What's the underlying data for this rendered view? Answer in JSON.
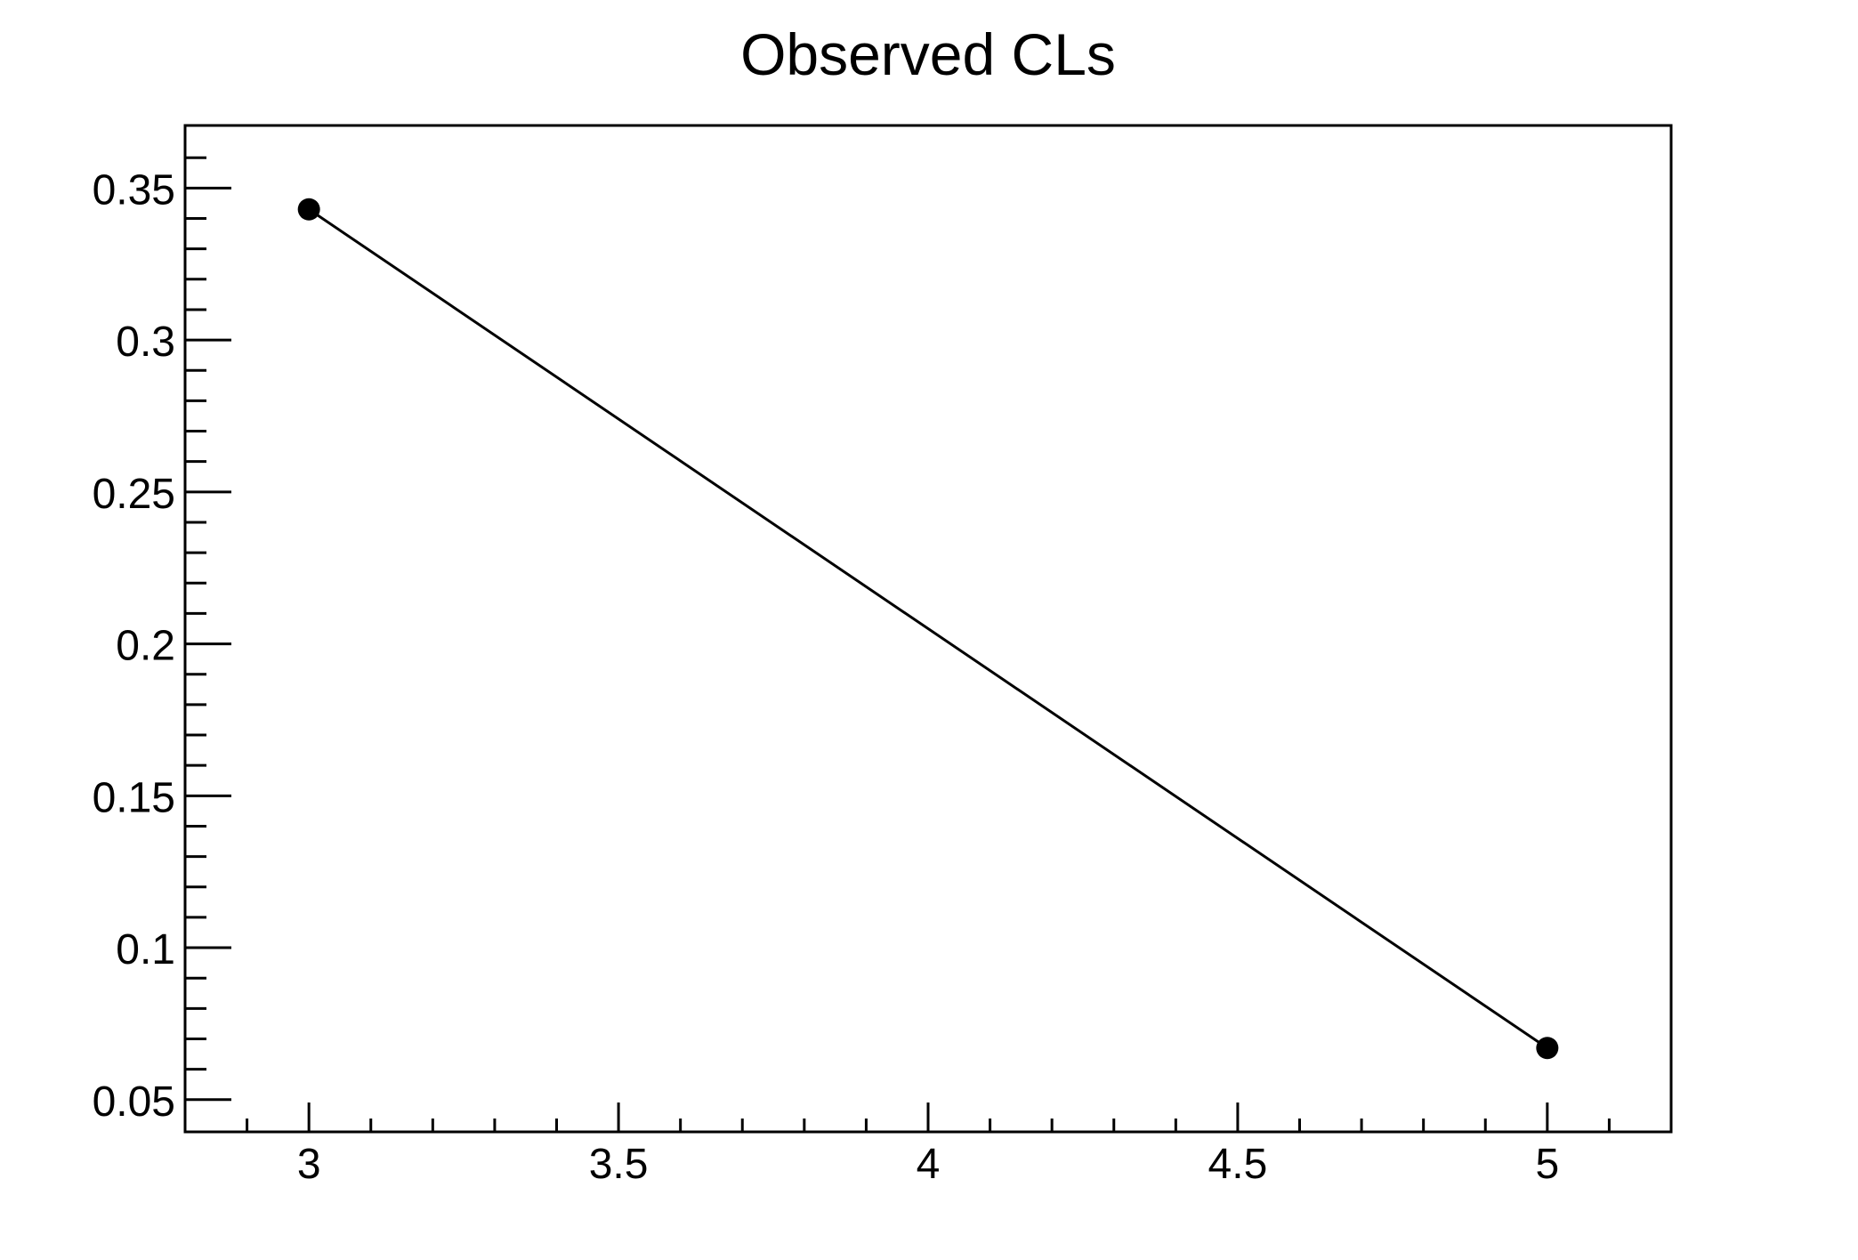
{
  "page": {
    "background": "#ffffff"
  },
  "chart_data": {
    "type": "line",
    "title": "Observed CLs",
    "xlabel": "",
    "ylabel": "",
    "grid": false,
    "legend": false,
    "background": "#ffffff",
    "axis_color": "#000000",
    "text_color": "#000000",
    "xlim": [
      2.8,
      5.2
    ],
    "ylim": [
      0.0394,
      0.3706
    ],
    "x_major_ticks": [
      3,
      3.5,
      4,
      4.5,
      5
    ],
    "x_tick_labels": [
      "3",
      "3.5",
      "4",
      "4.5",
      "5"
    ],
    "x_minor_step": 0.1,
    "y_major_ticks": [
      0.05,
      0.1,
      0.15,
      0.2,
      0.25,
      0.3,
      0.35
    ],
    "y_tick_labels": [
      "0.05",
      "0.1",
      "0.15",
      "0.2",
      "0.25",
      "0.3",
      "0.35"
    ],
    "y_minor_step": 0.01,
    "series": [
      {
        "name": "Observed CLs",
        "points": [
          {
            "x": 3,
            "y": 0.343
          },
          {
            "x": 5,
            "y": 0.067
          }
        ],
        "line_color": "#000000",
        "line_width": 3,
        "marker": "filled-circle",
        "marker_color": "#000000",
        "marker_radius": 12.5
      }
    ]
  }
}
